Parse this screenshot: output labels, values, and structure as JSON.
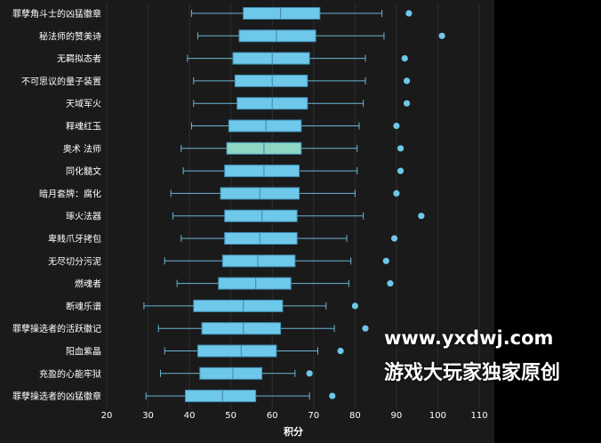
{
  "watermark": {
    "line1": "www.yxdwj.com",
    "line2": "游戏大玩家独家原创"
  },
  "colors": {
    "background": "#1a1a1a",
    "box": "#6ec8ea",
    "box_highlight": "#8fd6c4",
    "box_edge": "#3f8fb5",
    "whisker": "#6ab5d6",
    "grid": "#2e2e2e",
    "text": "#ffffff"
  },
  "chart_data": {
    "type": "boxplot",
    "orientation": "horizontal",
    "xlabel": "积分",
    "ylabel": "",
    "xlim": [
      20,
      113
    ],
    "xticks": [
      20,
      30,
      40,
      50,
      60,
      70,
      80,
      90,
      100,
      110
    ],
    "grid": "vertical",
    "highlight": "奥术 法师",
    "categories": [
      "罪孽角斗士的凶猛徽章",
      "秘法师的赞美诗",
      "无羁拟态者",
      "不可思议的量子装置",
      "天域军火",
      "释魂红玉",
      "奥术 法师",
      "同化髓文",
      "暗月套牌：腐化",
      "琢火法器",
      "卑贱爪牙拷包",
      "无尽切分污泥",
      "燃魂者",
      "断魂乐谱",
      "罪孽操选者的活跃徽记",
      "阳血紫晶",
      "充盈的心能牢狱",
      "罪孽操选者的凶猛徽章"
    ],
    "series": [
      {
        "category": "罪孽角斗士的凶猛徽章",
        "min": 40.5,
        "q1": 53,
        "median": 62,
        "q3": 71.5,
        "max": 86.5,
        "outliers": [
          93
        ]
      },
      {
        "category": "秘法师的赞美诗",
        "min": 42,
        "q1": 52,
        "median": 61,
        "q3": 70.5,
        "max": 87,
        "outliers": [
          101
        ]
      },
      {
        "category": "无羁拟态者",
        "min": 39.5,
        "q1": 50.5,
        "median": 60,
        "q3": 69,
        "max": 82.5,
        "outliers": [
          92
        ]
      },
      {
        "category": "不可思议的量子装置",
        "min": 41,
        "q1": 51,
        "median": 60,
        "q3": 68.5,
        "max": 82.5,
        "outliers": [
          92.5
        ]
      },
      {
        "category": "天域军火",
        "min": 41,
        "q1": 51.5,
        "median": 60,
        "q3": 68.5,
        "max": 82,
        "outliers": [
          92.5
        ]
      },
      {
        "category": "释魂红玉",
        "min": 40.5,
        "q1": 49.5,
        "median": 58.5,
        "q3": 67,
        "max": 81,
        "outliers": [
          90
        ]
      },
      {
        "category": "奥术 法师",
        "min": 38,
        "q1": 49,
        "median": 58,
        "q3": 67,
        "max": 80.5,
        "outliers": [
          91
        ]
      },
      {
        "category": "同化髓文",
        "min": 38.5,
        "q1": 48.5,
        "median": 58,
        "q3": 66.5,
        "max": 80.5,
        "outliers": [
          91
        ]
      },
      {
        "category": "暗月套牌：腐化",
        "min": 35.5,
        "q1": 47.5,
        "median": 57,
        "q3": 66.5,
        "max": 80,
        "outliers": [
          90
        ]
      },
      {
        "category": "琢火法器",
        "min": 36,
        "q1": 48.5,
        "median": 57.5,
        "q3": 66,
        "max": 82,
        "outliers": [
          96
        ]
      },
      {
        "category": "卑贱爪牙拷包",
        "min": 38,
        "q1": 48.5,
        "median": 57,
        "q3": 66,
        "max": 78,
        "outliers": [
          89.5
        ]
      },
      {
        "category": "无尽切分污泥",
        "min": 34,
        "q1": 48,
        "median": 56.5,
        "q3": 65.5,
        "max": 79,
        "outliers": [
          87.5
        ]
      },
      {
        "category": "燃魂者",
        "min": 37,
        "q1": 47,
        "median": 56,
        "q3": 64.5,
        "max": 78.5,
        "outliers": [
          88.5
        ]
      },
      {
        "category": "断魂乐谱",
        "min": 29,
        "q1": 41,
        "median": 53,
        "q3": 62.5,
        "max": 73,
        "outliers": [
          80
        ]
      },
      {
        "category": "罪孽操选者的活跃徽记",
        "min": 32.5,
        "q1": 43,
        "median": 53,
        "q3": 62,
        "max": 75,
        "outliers": [
          82.5
        ]
      },
      {
        "category": "阳血紫晶",
        "min": 34,
        "q1": 42,
        "median": 52.5,
        "q3": 61,
        "max": 71,
        "outliers": [
          76.5
        ]
      },
      {
        "category": "充盈的心能牢狱",
        "min": 33,
        "q1": 42.5,
        "median": 50.5,
        "q3": 57.5,
        "max": 65.5,
        "outliers": [
          69
        ]
      },
      {
        "category": "罪孽操选者的凶猛徽章",
        "min": 29.5,
        "q1": 39,
        "median": 48,
        "q3": 56,
        "max": 69,
        "outliers": [
          74.5
        ]
      }
    ]
  }
}
